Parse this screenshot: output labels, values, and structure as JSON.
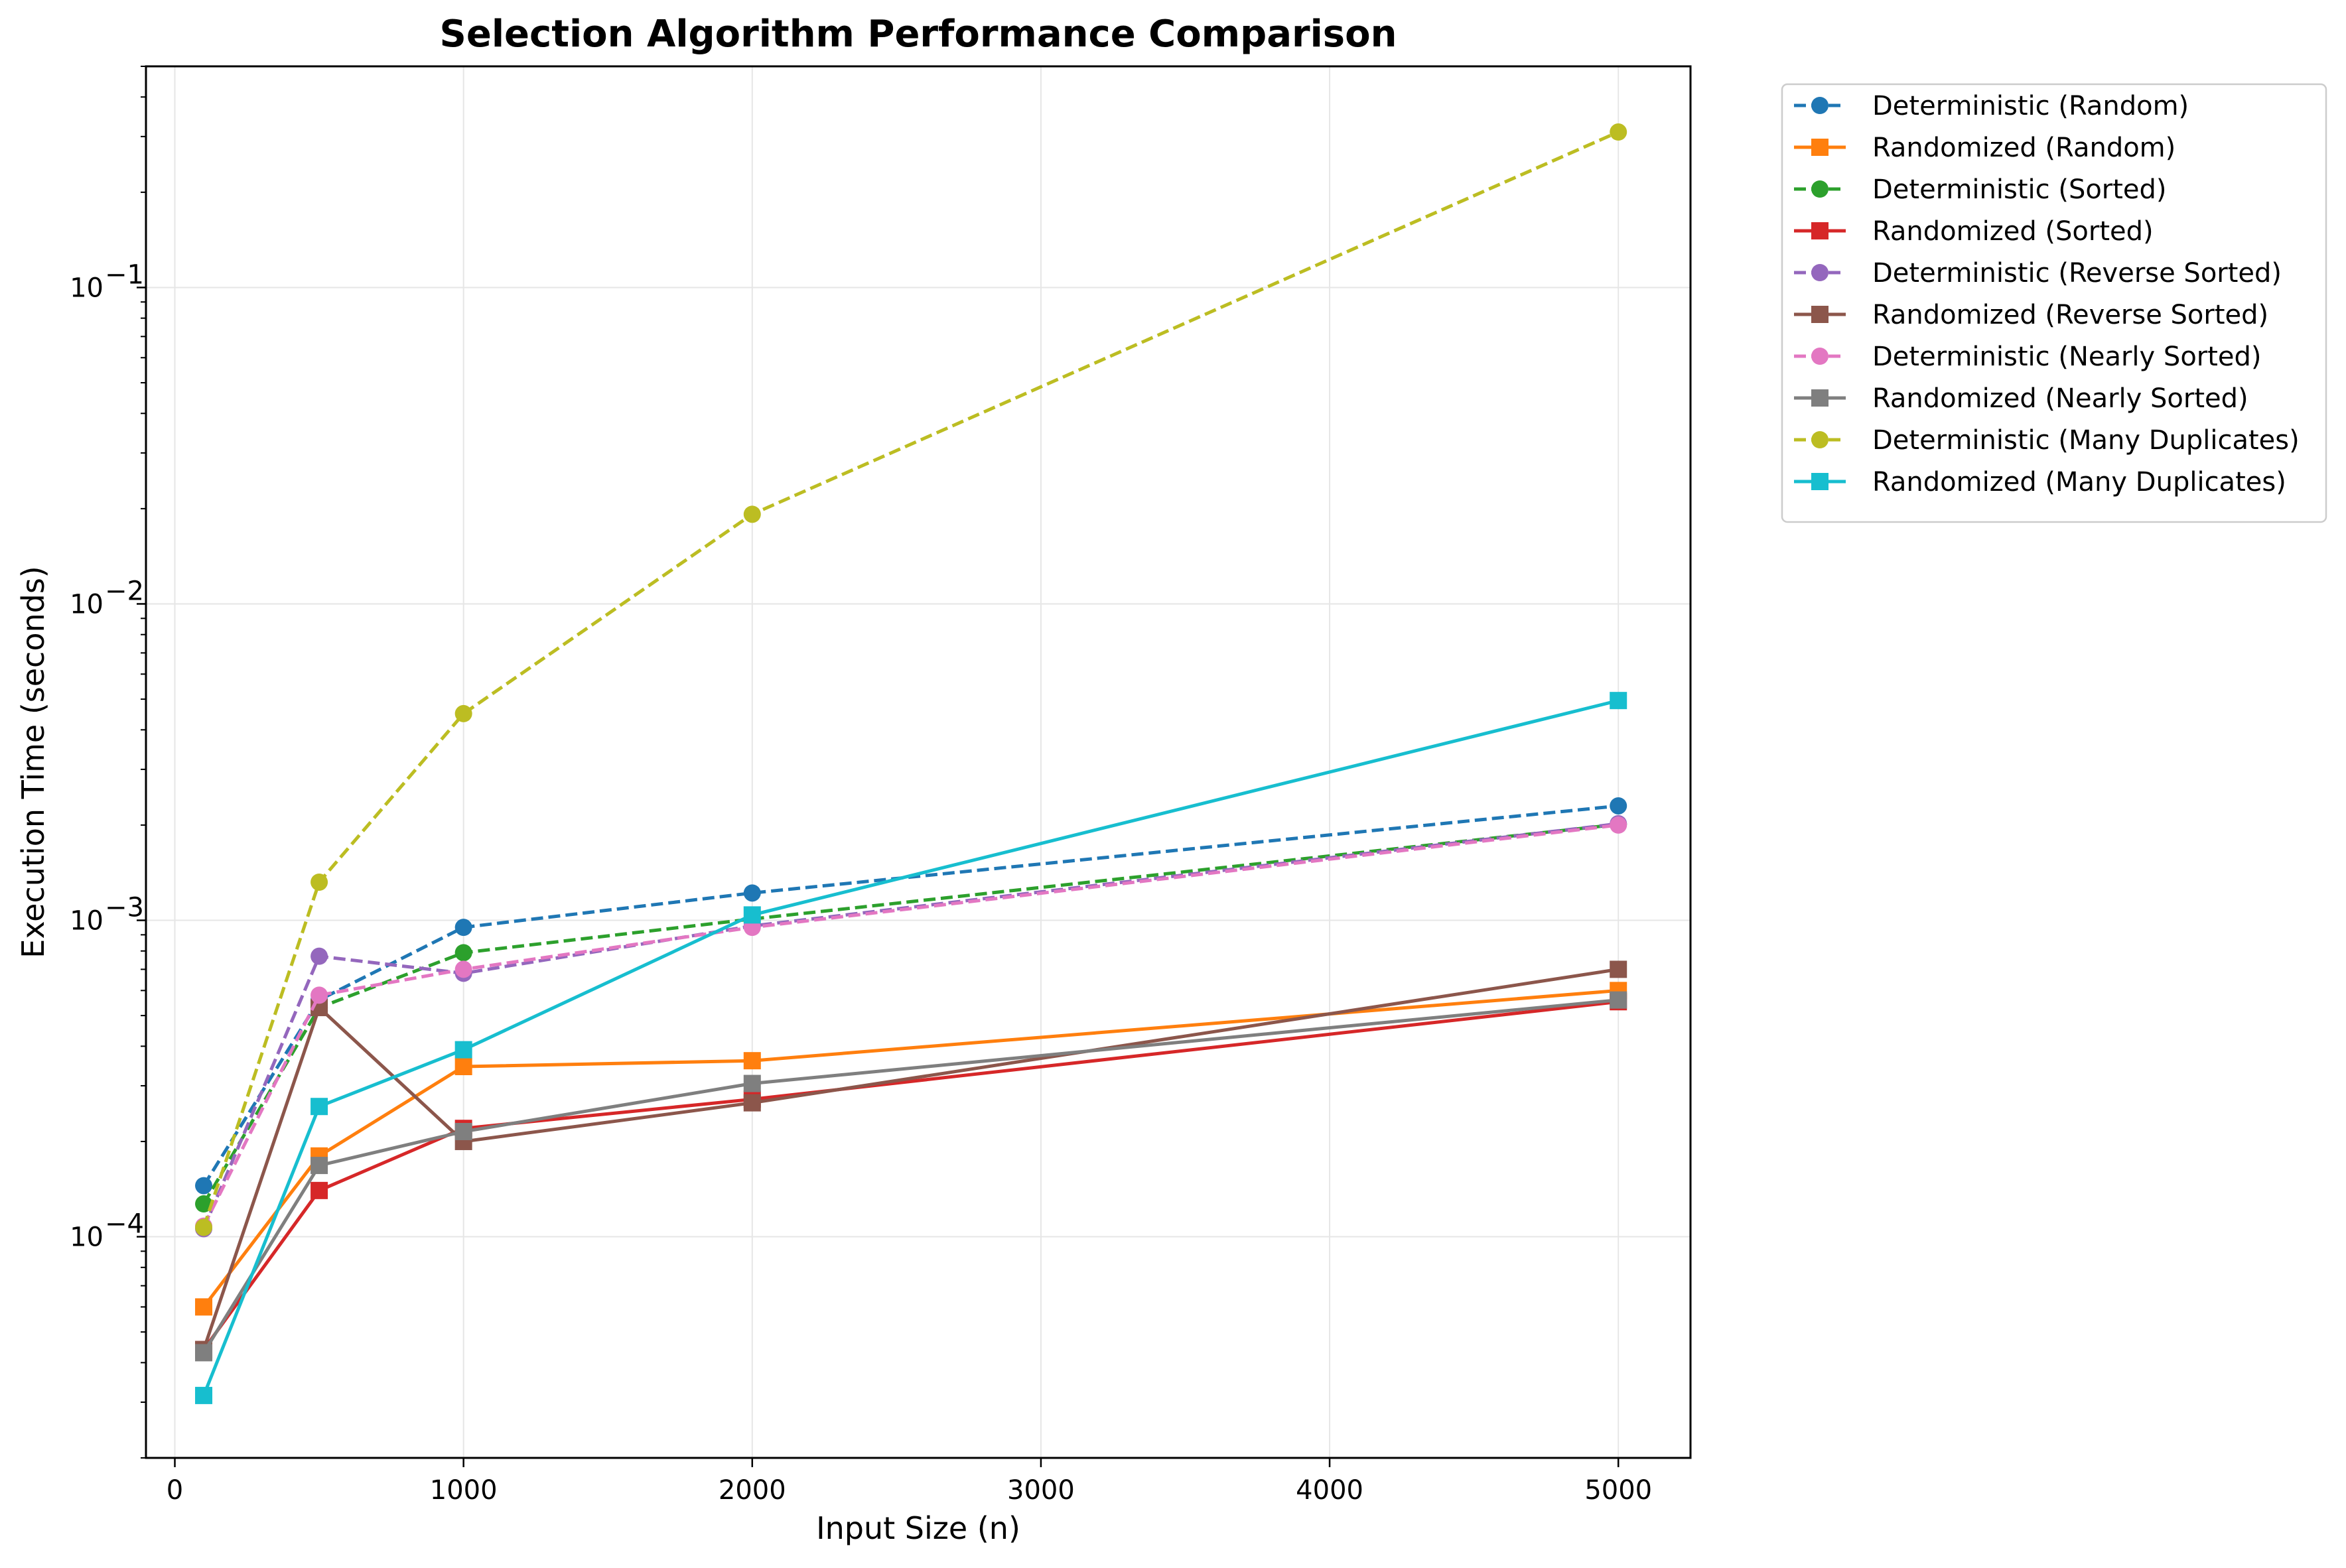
{
  "chart_data": {
    "type": "line",
    "title": "Selection Algorithm Performance Comparison",
    "xlabel": "Input Size (n)",
    "ylabel": "Execution Time (seconds)",
    "yscale": "log",
    "xlim": [
      -100,
      5250
    ],
    "ylim": [
      2e-05,
      0.5
    ],
    "x_ticks": [
      0,
      1000,
      2000,
      3000,
      4000,
      5000
    ],
    "y_ticks": [
      0.0001,
      0.001,
      0.01,
      0.1
    ],
    "y_tick_labels": [
      {
        "base": "10",
        "exp": "−4"
      },
      {
        "base": "10",
        "exp": "−3"
      },
      {
        "base": "10",
        "exp": "−2"
      },
      {
        "base": "10",
        "exp": "−1"
      }
    ],
    "grid": true,
    "legend_position": "outside-upper-right",
    "x": [
      100,
      500,
      1000,
      2000,
      5000
    ],
    "series": [
      {
        "name": "Deterministic (Random)",
        "values": [
          0.000145,
          0.00056,
          0.00095,
          0.00122,
          0.0023
        ],
        "color": "#1f77b4",
        "dashed": true,
        "marker": "circle"
      },
      {
        "name": "Randomized (Random)",
        "values": [
          6e-05,
          0.00018,
          0.000345,
          0.00036,
          0.0006
        ],
        "color": "#ff7f0e",
        "dashed": false,
        "marker": "square"
      },
      {
        "name": "Deterministic (Sorted)",
        "values": [
          0.000127,
          0.00053,
          0.00079,
          0.00101,
          0.00201
        ],
        "color": "#2ca02c",
        "dashed": true,
        "marker": "circle"
      },
      {
        "name": "Randomized (Sorted)",
        "values": [
          4.4e-05,
          0.00014,
          0.00022,
          0.000272,
          0.000553
        ],
        "color": "#d62728",
        "dashed": false,
        "marker": "square"
      },
      {
        "name": "Deterministic (Reverse Sorted)",
        "values": [
          0.000106,
          0.00077,
          0.00068,
          0.00096,
          0.00202
        ],
        "color": "#9467bd",
        "dashed": true,
        "marker": "circle"
      },
      {
        "name": "Randomized (Reverse Sorted)",
        "values": [
          4.4e-05,
          0.00053,
          0.0002,
          0.000265,
          0.0007
        ],
        "color": "#8c564b",
        "dashed": false,
        "marker": "square"
      },
      {
        "name": "Deterministic (Nearly Sorted)",
        "values": [
          0.000108,
          0.00058,
          0.0007,
          0.00095,
          0.002
        ],
        "color": "#e377c2",
        "dashed": true,
        "marker": "circle"
      },
      {
        "name": "Randomized (Nearly Sorted)",
        "values": [
          4.3e-05,
          0.000168,
          0.000215,
          0.000305,
          0.00056
        ],
        "color": "#7f7f7f",
        "dashed": false,
        "marker": "square"
      },
      {
        "name": "Deterministic (Many Duplicates)",
        "values": [
          0.000107,
          0.00132,
          0.0045,
          0.0192,
          0.31
        ],
        "color": "#bcbd22",
        "dashed": true,
        "marker": "circle"
      },
      {
        "name": "Randomized (Many Duplicates)",
        "values": [
          3.15e-05,
          0.000258,
          0.00039,
          0.00104,
          0.00495
        ],
        "color": "#17becf",
        "dashed": false,
        "marker": "square"
      }
    ]
  }
}
